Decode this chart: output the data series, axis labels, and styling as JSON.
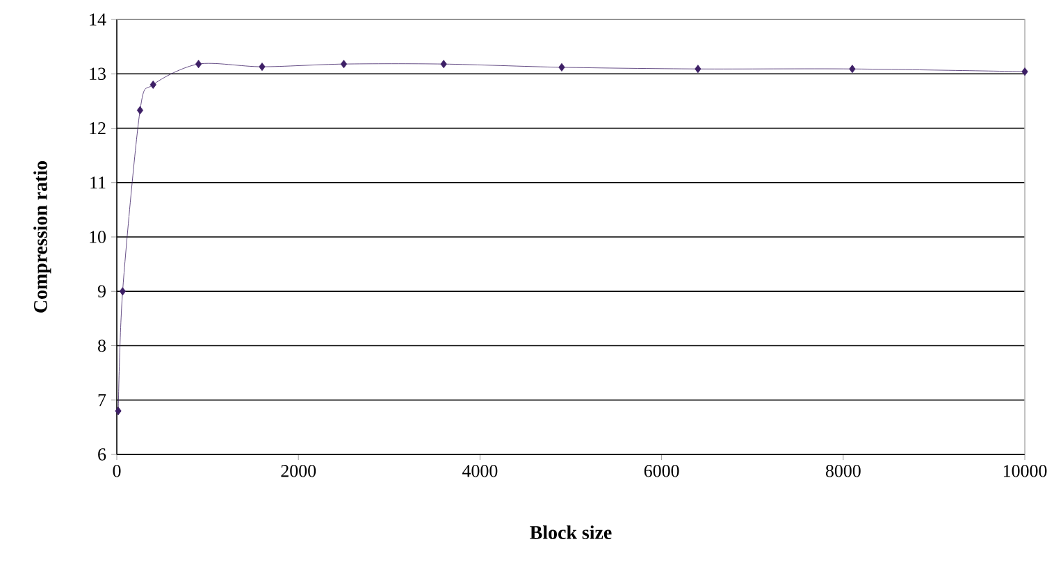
{
  "chart_data": {
    "type": "line",
    "xlabel": "Block size",
    "ylabel": "Compression ratio",
    "x": [
      16,
      64,
      256,
      400,
      900,
      1600,
      2500,
      3600,
      4900,
      6400,
      8100,
      10000
    ],
    "series": [
      {
        "color": "#3d1f66",
        "values": [
          6.8,
          9.0,
          12.33,
          12.8,
          13.18,
          13.13,
          13.18,
          13.18,
          13.12,
          13.09,
          13.09,
          13.04
        ]
      }
    ],
    "xlim": [
      0,
      10000
    ],
    "xticks": [
      0,
      2000,
      4000,
      6000,
      8000,
      10000
    ],
    "ylim": [
      6,
      14
    ],
    "yticks": [
      6,
      7,
      8,
      9,
      10,
      11,
      12,
      13,
      14
    ],
    "grid": "y",
    "marker": "diamond",
    "line_style": "solid"
  }
}
